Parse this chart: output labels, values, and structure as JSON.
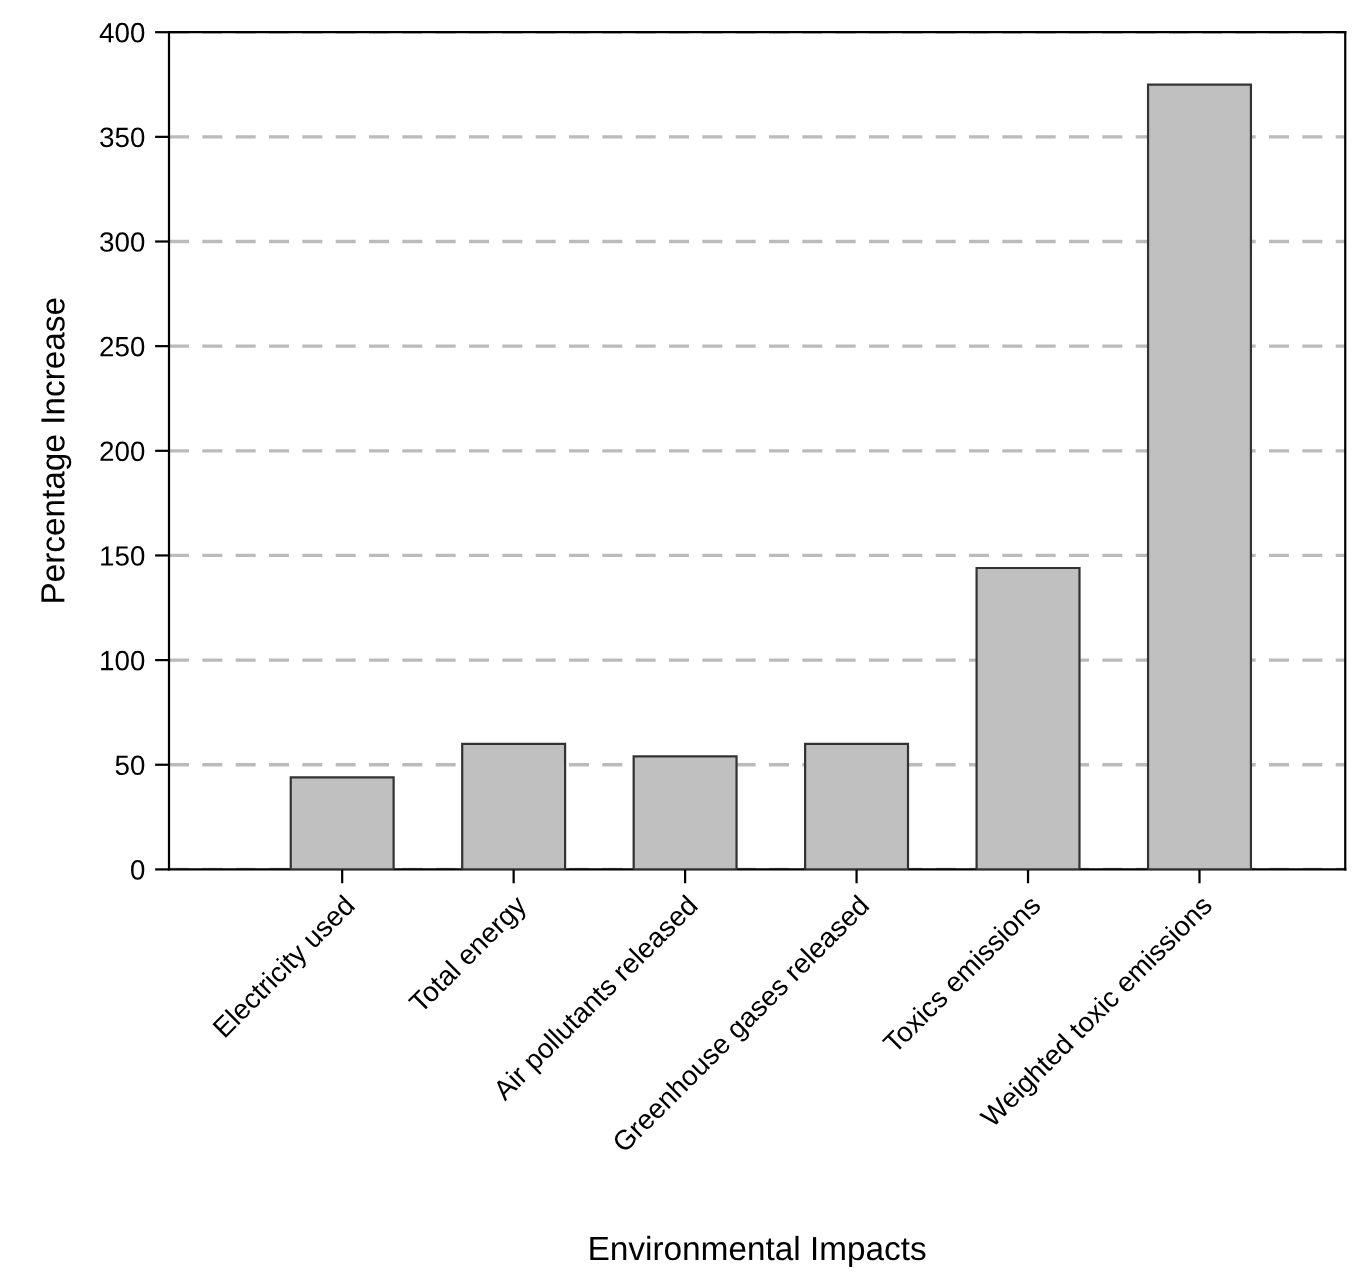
{
  "chart_data": {
    "type": "bar",
    "categories": [
      "Electricity used",
      "Total energy",
      "Air pollutants released",
      "Greenhouse gases released",
      "Toxics emissions",
      "Weighted toxic emissions"
    ],
    "values": [
      44,
      60,
      54,
      60,
      144,
      375
    ],
    "color": "#c0c0c0",
    "xlabel": "Environmental Impacts",
    "ylabel": "Percentage Increase",
    "ylim": [
      0,
      400
    ],
    "yticks": [
      0,
      50,
      100,
      150,
      200,
      250,
      300,
      350,
      400
    ],
    "grid": "y"
  }
}
